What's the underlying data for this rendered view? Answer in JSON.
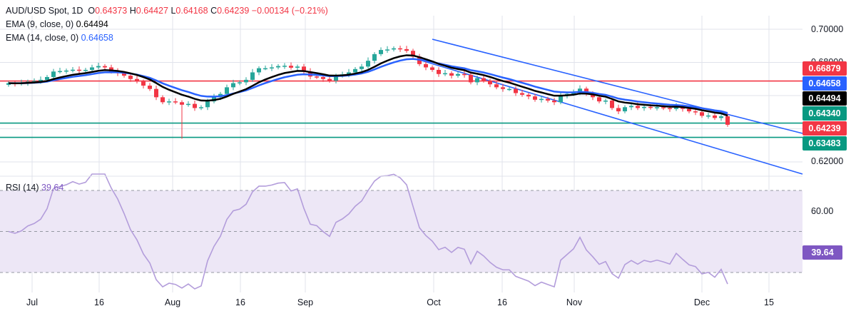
{
  "colors": {
    "up": "#26a69a",
    "down": "#f23645",
    "ema9": "#000000",
    "ema14": "#2962ff",
    "channel": "#2962ff",
    "resistance": "#f23645",
    "support": "#089981",
    "rsi": "#b39ddb",
    "rsi_band": "#ede7f6",
    "grid": "#e0e3eb",
    "rsi_badge": "#7e57c2"
  },
  "header": {
    "title": "AUD/USD Spot, 1D",
    "o_label": "O",
    "o_value": "0.64373",
    "h_label": "H",
    "h_value": "0.64427",
    "l_label": "L",
    "l_value": "0.64168",
    "c_label": "C",
    "c_value": "0.64239",
    "change": "−0.00134 (−0.21%)",
    "ema9_label": "EMA (9, close, 0)",
    "ema9_value": "0.64494",
    "ema14_label": "EMA (14, close, 0)",
    "ema14_value": "0.64658"
  },
  "rsi_header": {
    "label": "RSI (14)",
    "value": "39.64"
  },
  "price_axis": {
    "ticks": [
      "0.70000",
      "0.68000",
      "0.62000"
    ]
  },
  "rsi_axis": {
    "tick": "60.00"
  },
  "badges": [
    {
      "label": "0.66879",
      "color": "#f23645"
    },
    {
      "label": "0.64658",
      "color": "#2962ff"
    },
    {
      "label": "0.64494",
      "color": "#000000"
    },
    {
      "label": "0.64340",
      "color": "#089981"
    },
    {
      "label": "0.64239",
      "color": "#f23645"
    },
    {
      "label": "0.63483",
      "color": "#089981"
    }
  ],
  "rsi_badge": {
    "label": "39.64"
  },
  "x_axis": {
    "labels": [
      "Jul",
      "16",
      "Aug",
      "16",
      "Sep",
      "Oct",
      "16",
      "Nov",
      "Dec",
      "15"
    ]
  },
  "chart_data": {
    "type": "candlestick",
    "symbol": "AUD/USD Spot",
    "interval": "1D",
    "x_labels": [
      "Jul",
      "16",
      "Aug",
      "16",
      "Sep",
      "Oct",
      "16",
      "Nov",
      "Dec",
      "15"
    ],
    "y_range": [
      0.6,
      0.7
    ],
    "y_ticks": [
      0.7,
      0.68,
      0.62
    ],
    "close": [
      0.6675,
      0.6672,
      0.6676,
      0.6684,
      0.6688,
      0.6695,
      0.6712,
      0.6745,
      0.6748,
      0.6751,
      0.6756,
      0.6752,
      0.6755,
      0.677,
      0.6778,
      0.677,
      0.6745,
      0.6735,
      0.672,
      0.67,
      0.6685,
      0.666,
      0.664,
      0.659,
      0.656,
      0.6565,
      0.656,
      0.6545,
      0.655,
      0.6525,
      0.653,
      0.6565,
      0.659,
      0.661,
      0.665,
      0.6675,
      0.668,
      0.6695,
      0.674,
      0.6765,
      0.6765,
      0.677,
      0.6778,
      0.678,
      0.6768,
      0.6775,
      0.6745,
      0.6715,
      0.6712,
      0.67,
      0.669,
      0.672,
      0.6728,
      0.674,
      0.676,
      0.6775,
      0.681,
      0.685,
      0.6875,
      0.6878,
      0.6885,
      0.688,
      0.687,
      0.6835,
      0.679,
      0.677,
      0.6755,
      0.673,
      0.6735,
      0.672,
      0.673,
      0.6725,
      0.668,
      0.6705,
      0.669,
      0.6668,
      0.665,
      0.664,
      0.664,
      0.6615,
      0.6605,
      0.6595,
      0.6575,
      0.658,
      0.657,
      0.656,
      0.66,
      0.661,
      0.662,
      0.6642,
      0.661,
      0.659,
      0.6565,
      0.657,
      0.6525,
      0.6505,
      0.653,
      0.6538,
      0.6525,
      0.6532,
      0.6527,
      0.653,
      0.6525,
      0.6519,
      0.6535,
      0.652,
      0.6505,
      0.65,
      0.6478,
      0.648,
      0.6465,
      0.6475,
      0.6424
    ],
    "ema9_last": 0.64494,
    "ema14_last": 0.64658,
    "horizontal_levels": [
      0.66879,
      0.6434,
      0.63483
    ],
    "rsi": {
      "period": 14,
      "last": 39.64,
      "bands": [
        30,
        50,
        70
      ]
    }
  }
}
